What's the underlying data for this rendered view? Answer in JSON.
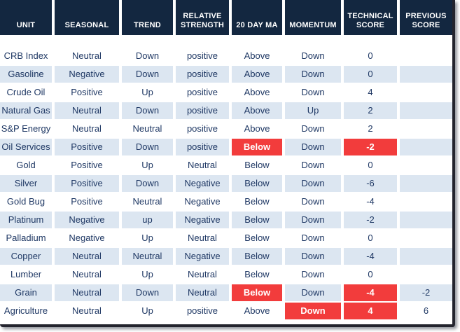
{
  "chart_data": {
    "type": "table",
    "title": "Commodity technical score table",
    "columns": [
      {
        "key": "unit",
        "label": "UNIT"
      },
      {
        "key": "seasonal",
        "label": "SEASONAL"
      },
      {
        "key": "trend",
        "label": "TREND"
      },
      {
        "key": "relative_strength",
        "label": "RELATIVE STRENGTH"
      },
      {
        "key": "ma20",
        "label": "20 DAY MA"
      },
      {
        "key": "momentum",
        "label": "MOMENTUM"
      },
      {
        "key": "technical_score",
        "label": "TECHNICAL SCORE"
      },
      {
        "key": "previous_score",
        "label": "PREVIOUS SCORE"
      }
    ],
    "rows": [
      {
        "unit": "CRB Index",
        "seasonal": "Neutral",
        "trend": "Down",
        "relative_strength": "positive",
        "ma20": "Above",
        "momentum": "Down",
        "technical_score": "0",
        "previous_score": "",
        "highlights": []
      },
      {
        "unit": "Gasoline",
        "seasonal": "Negative",
        "trend": "Down",
        "relative_strength": "positive",
        "ma20": "Above",
        "momentum": "Down",
        "technical_score": "0",
        "previous_score": "",
        "highlights": []
      },
      {
        "unit": "Crude Oil",
        "seasonal": "Positive",
        "trend": "Up",
        "relative_strength": "positive",
        "ma20": "Above",
        "momentum": "Down",
        "technical_score": "4",
        "previous_score": "",
        "highlights": []
      },
      {
        "unit": "Natural Gas",
        "seasonal": "Neutral",
        "trend": "Down",
        "relative_strength": "positive",
        "ma20": "Above",
        "momentum": "Up",
        "technical_score": "2",
        "previous_score": "",
        "highlights": []
      },
      {
        "unit": "S&P Energy",
        "seasonal": "Neutral",
        "trend": "Neutral",
        "relative_strength": "positive",
        "ma20": "Above",
        "momentum": "Down",
        "technical_score": "2",
        "previous_score": "",
        "highlights": []
      },
      {
        "unit": "Oil Services",
        "seasonal": "Positive",
        "trend": "Down",
        "relative_strength": "positive",
        "ma20": "Below",
        "momentum": "Down",
        "technical_score": "-2",
        "previous_score": "",
        "highlights": [
          "ma20",
          "technical_score"
        ]
      },
      {
        "unit": "Gold",
        "seasonal": "Positive",
        "trend": "Up",
        "relative_strength": "Neutral",
        "ma20": "Below",
        "momentum": "Down",
        "technical_score": "0",
        "previous_score": "",
        "highlights": []
      },
      {
        "unit": "Silver",
        "seasonal": "Positive",
        "trend": "Down",
        "relative_strength": "Negative",
        "ma20": "Below",
        "momentum": "Down",
        "technical_score": "-6",
        "previous_score": "",
        "highlights": []
      },
      {
        "unit": "Gold Bug",
        "seasonal": "Positive",
        "trend": "Neutral",
        "relative_strength": "Negative",
        "ma20": "Below",
        "momentum": "Down",
        "technical_score": "-4",
        "previous_score": "",
        "highlights": []
      },
      {
        "unit": "Platinum",
        "seasonal": "Negative",
        "trend": "up",
        "relative_strength": "Negative",
        "ma20": "Below",
        "momentum": "Down",
        "technical_score": "-2",
        "previous_score": "",
        "highlights": []
      },
      {
        "unit": "Palladium",
        "seasonal": "Negative",
        "trend": "Up",
        "relative_strength": "Neutral",
        "ma20": "Below",
        "momentum": "Down",
        "technical_score": "0",
        "previous_score": "",
        "highlights": []
      },
      {
        "unit": "Copper",
        "seasonal": "Neutral",
        "trend": "Neutral",
        "relative_strength": "Negative",
        "ma20": "Below",
        "momentum": "Down",
        "technical_score": "-4",
        "previous_score": "",
        "highlights": []
      },
      {
        "unit": "Lumber",
        "seasonal": "Neutral",
        "trend": "Up",
        "relative_strength": "Neutral",
        "ma20": "Below",
        "momentum": "Down",
        "technical_score": "0",
        "previous_score": "",
        "highlights": []
      },
      {
        "unit": "Grain",
        "seasonal": "Neutral",
        "trend": "Down",
        "relative_strength": "Neutral",
        "ma20": "Below",
        "momentum": "Down",
        "technical_score": "-4",
        "previous_score": "-2",
        "highlights": [
          "ma20",
          "technical_score"
        ]
      },
      {
        "unit": "Agriculture",
        "seasonal": "Neutral",
        "trend": "Up",
        "relative_strength": "positive",
        "ma20": "Above",
        "momentum": "Down",
        "technical_score": "4",
        "previous_score": "6",
        "highlights": [
          "momentum",
          "technical_score"
        ]
      }
    ],
    "colors": {
      "header_bg": "#132740",
      "stripe": "#DCE6F1",
      "row_alt": "#FFFFFF",
      "text": "#1F3864",
      "highlight": "#F23C3C",
      "highlight_text": "#FFFFFF",
      "frame_border": "#23242E"
    },
    "layout_hints": {
      "striped_rows": true,
      "header_text_color": "#FFFFFF",
      "highlighted_cells_bold": true
    }
  }
}
